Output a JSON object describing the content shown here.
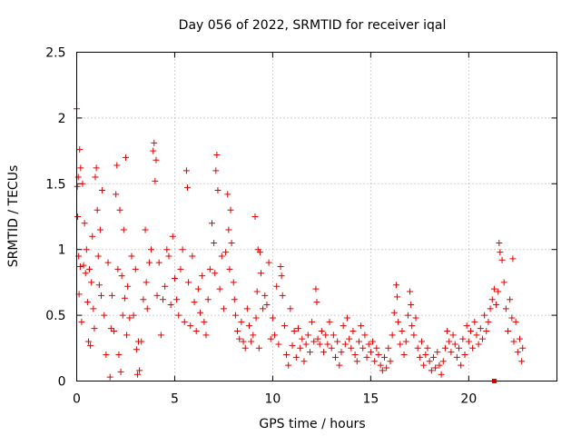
{
  "chart_data": {
    "type": "scatter",
    "title": "Day 056 of 2022, SRMTID for receiver iqal",
    "xlabel": "GPS time / hours",
    "ylabel": "SRMTID / TECUs",
    "xlim": [
      0,
      24.5
    ],
    "ylim": [
      0,
      2.5
    ],
    "xticks": [
      0,
      5,
      10,
      15,
      20
    ],
    "xtick_labels": [
      "0",
      "5",
      "10",
      "15",
      "20"
    ],
    "yticks": [
      0,
      0.5,
      1,
      1.5,
      2,
      2.5
    ],
    "ytick_labels": [
      "0",
      "0.5",
      "1",
      "1.5",
      "2",
      "2.5"
    ],
    "grid": true,
    "marker": "+",
    "color": "#e00000",
    "series": [
      {
        "name": "iqal",
        "points": [
          [
            0.0,
            2.07
          ],
          [
            0.03,
            1.48
          ],
          [
            0.05,
            1.25
          ],
          [
            0.08,
            1.55
          ],
          [
            0.1,
            0.95
          ],
          [
            0.12,
            0.66
          ],
          [
            0.15,
            1.76
          ],
          [
            0.18,
            0.87
          ],
          [
            0.2,
            1.62
          ],
          [
            0.25,
            0.45
          ],
          [
            0.3,
            1.5
          ],
          [
            0.35,
            0.88
          ],
          [
            0.4,
            1.2
          ],
          [
            0.45,
            0.82
          ],
          [
            0.5,
            1.0
          ],
          [
            0.55,
            0.6
          ],
          [
            0.6,
            0.3
          ],
          [
            0.65,
            0.85
          ],
          [
            0.7,
            0.27
          ],
          [
            0.75,
            0.75
          ],
          [
            0.8,
            1.1
          ],
          [
            0.85,
            0.55
          ],
          [
            0.9,
            0.4
          ],
          [
            0.95,
            1.55
          ],
          [
            1.0,
            1.62
          ],
          [
            1.05,
            1.3
          ],
          [
            1.1,
            0.95
          ],
          [
            1.15,
            0.73
          ],
          [
            1.2,
            1.15
          ],
          [
            1.25,
            0.65
          ],
          [
            1.3,
            1.45
          ],
          [
            1.4,
            0.5
          ],
          [
            1.5,
            0.2
          ],
          [
            1.6,
            0.9
          ],
          [
            1.7,
            0.03
          ],
          [
            1.75,
            0.4
          ],
          [
            1.8,
            0.65
          ],
          [
            1.9,
            0.38
          ],
          [
            2.0,
            1.42
          ],
          [
            2.05,
            1.64
          ],
          [
            2.1,
            0.85
          ],
          [
            2.15,
            0.2
          ],
          [
            2.2,
            1.3
          ],
          [
            2.25,
            0.07
          ],
          [
            2.3,
            0.8
          ],
          [
            2.35,
            0.5
          ],
          [
            2.4,
            1.15
          ],
          [
            2.45,
            0.63
          ],
          [
            2.5,
            1.7
          ],
          [
            2.55,
            0.35
          ],
          [
            2.6,
            0.72
          ],
          [
            2.7,
            0.48
          ],
          [
            2.8,
            0.95
          ],
          [
            2.9,
            0.5
          ],
          [
            3.0,
            0.85
          ],
          [
            3.05,
            0.24
          ],
          [
            3.1,
            0.05
          ],
          [
            3.15,
            0.3
          ],
          [
            3.2,
            0.08
          ],
          [
            3.3,
            0.3
          ],
          [
            3.4,
            0.62
          ],
          [
            3.5,
            1.15
          ],
          [
            3.55,
            0.75
          ],
          [
            3.6,
            0.55
          ],
          [
            3.7,
            0.9
          ],
          [
            3.8,
            1.0
          ],
          [
            3.9,
            1.75
          ],
          [
            3.95,
            1.81
          ],
          [
            4.0,
            1.52
          ],
          [
            4.05,
            1.68
          ],
          [
            4.1,
            0.65
          ],
          [
            4.2,
            0.9
          ],
          [
            4.3,
            0.35
          ],
          [
            4.4,
            0.62
          ],
          [
            4.5,
            0.72
          ],
          [
            4.6,
            1.0
          ],
          [
            4.7,
            0.95
          ],
          [
            4.8,
            0.58
          ],
          [
            4.9,
            1.1
          ],
          [
            5.0,
            0.78
          ],
          [
            5.1,
            0.62
          ],
          [
            5.2,
            0.5
          ],
          [
            5.3,
            0.85
          ],
          [
            5.4,
            1.0
          ],
          [
            5.5,
            0.45
          ],
          [
            5.6,
            1.6
          ],
          [
            5.65,
            1.47
          ],
          [
            5.7,
            0.75
          ],
          [
            5.8,
            0.42
          ],
          [
            5.9,
            0.95
          ],
          [
            6.0,
            0.6
          ],
          [
            6.1,
            0.38
          ],
          [
            6.2,
            0.7
          ],
          [
            6.3,
            0.52
          ],
          [
            6.4,
            0.8
          ],
          [
            6.5,
            0.45
          ],
          [
            6.6,
            0.35
          ],
          [
            6.7,
            0.62
          ],
          [
            6.8,
            0.85
          ],
          [
            6.9,
            1.2
          ],
          [
            7.0,
            1.05
          ],
          [
            7.05,
            0.82
          ],
          [
            7.1,
            1.6
          ],
          [
            7.15,
            1.72
          ],
          [
            7.2,
            1.45
          ],
          [
            7.3,
            0.7
          ],
          [
            7.4,
            0.95
          ],
          [
            7.5,
            0.55
          ],
          [
            7.6,
            0.98
          ],
          [
            7.7,
            1.42
          ],
          [
            7.75,
            1.15
          ],
          [
            7.8,
            0.85
          ],
          [
            7.85,
            1.3
          ],
          [
            7.9,
            1.05
          ],
          [
            8.0,
            0.75
          ],
          [
            8.05,
            0.62
          ],
          [
            8.1,
            0.5
          ],
          [
            8.2,
            0.38
          ],
          [
            8.3,
            0.32
          ],
          [
            8.4,
            0.45
          ],
          [
            8.5,
            0.3
          ],
          [
            8.6,
            0.25
          ],
          [
            8.7,
            0.55
          ],
          [
            8.8,
            0.42
          ],
          [
            8.9,
            0.3
          ],
          [
            9.0,
            0.35
          ],
          [
            9.1,
            1.25
          ],
          [
            9.15,
            0.48
          ],
          [
            9.2,
            0.68
          ],
          [
            9.25,
            1.0
          ],
          [
            9.3,
            0.25
          ],
          [
            9.35,
            0.98
          ],
          [
            9.4,
            0.82
          ],
          [
            9.5,
            0.55
          ],
          [
            9.6,
            0.65
          ],
          [
            9.7,
            0.58
          ],
          [
            9.8,
            0.9
          ],
          [
            9.9,
            0.32
          ],
          [
            10.0,
            0.48
          ],
          [
            10.1,
            0.35
          ],
          [
            10.2,
            0.72
          ],
          [
            10.3,
            0.28
          ],
          [
            10.4,
            0.87
          ],
          [
            10.45,
            0.8
          ],
          [
            10.5,
            0.65
          ],
          [
            10.6,
            0.42
          ],
          [
            10.7,
            0.2
          ],
          [
            10.8,
            0.12
          ],
          [
            10.9,
            0.55
          ],
          [
            11.0,
            0.27
          ],
          [
            11.1,
            0.38
          ],
          [
            11.2,
            0.18
          ],
          [
            11.3,
            0.4
          ],
          [
            11.4,
            0.25
          ],
          [
            11.5,
            0.32
          ],
          [
            11.6,
            0.15
          ],
          [
            11.7,
            0.28
          ],
          [
            11.8,
            0.35
          ],
          [
            11.9,
            0.22
          ],
          [
            12.0,
            0.45
          ],
          [
            12.1,
            0.3
          ],
          [
            12.2,
            0.7
          ],
          [
            12.25,
            0.6
          ],
          [
            12.3,
            0.32
          ],
          [
            12.4,
            0.28
          ],
          [
            12.5,
            0.38
          ],
          [
            12.6,
            0.22
          ],
          [
            12.7,
            0.35
          ],
          [
            12.8,
            0.28
          ],
          [
            12.9,
            0.45
          ],
          [
            13.0,
            0.25
          ],
          [
            13.1,
            0.35
          ],
          [
            13.2,
            0.18
          ],
          [
            13.3,
            0.3
          ],
          [
            13.4,
            0.12
          ],
          [
            13.5,
            0.22
          ],
          [
            13.6,
            0.42
          ],
          [
            13.7,
            0.28
          ],
          [
            13.8,
            0.48
          ],
          [
            13.9,
            0.32
          ],
          [
            14.0,
            0.25
          ],
          [
            14.1,
            0.38
          ],
          [
            14.2,
            0.2
          ],
          [
            14.3,
            0.15
          ],
          [
            14.4,
            0.3
          ],
          [
            14.5,
            0.42
          ],
          [
            14.6,
            0.25
          ],
          [
            14.7,
            0.35
          ],
          [
            14.8,
            0.18
          ],
          [
            14.9,
            0.28
          ],
          [
            15.0,
            0.22
          ],
          [
            15.1,
            0.3
          ],
          [
            15.2,
            0.15
          ],
          [
            15.3,
            0.25
          ],
          [
            15.4,
            0.2
          ],
          [
            15.5,
            0.12
          ],
          [
            15.6,
            0.08
          ],
          [
            15.7,
            0.18
          ],
          [
            15.8,
            0.1
          ],
          [
            15.9,
            0.25
          ],
          [
            16.0,
            0.15
          ],
          [
            16.1,
            0.35
          ],
          [
            16.2,
            0.52
          ],
          [
            16.3,
            0.73
          ],
          [
            16.35,
            0.64
          ],
          [
            16.4,
            0.45
          ],
          [
            16.5,
            0.28
          ],
          [
            16.6,
            0.38
          ],
          [
            16.7,
            0.2
          ],
          [
            16.8,
            0.3
          ],
          [
            16.9,
            0.5
          ],
          [
            17.0,
            0.68
          ],
          [
            17.05,
            0.58
          ],
          [
            17.1,
            0.42
          ],
          [
            17.2,
            0.35
          ],
          [
            17.3,
            0.48
          ],
          [
            17.4,
            0.25
          ],
          [
            17.5,
            0.18
          ],
          [
            17.6,
            0.3
          ],
          [
            17.7,
            0.12
          ],
          [
            17.8,
            0.2
          ],
          [
            17.9,
            0.25
          ],
          [
            18.0,
            0.15
          ],
          [
            18.1,
            0.08
          ],
          [
            18.2,
            0.18
          ],
          [
            18.3,
            0.1
          ],
          [
            18.4,
            0.22
          ],
          [
            18.5,
            0.12
          ],
          [
            18.6,
            0.05
          ],
          [
            18.7,
            0.15
          ],
          [
            18.8,
            0.25
          ],
          [
            18.9,
            0.38
          ],
          [
            19.0,
            0.3
          ],
          [
            19.1,
            0.22
          ],
          [
            19.2,
            0.35
          ],
          [
            19.3,
            0.28
          ],
          [
            19.4,
            0.18
          ],
          [
            19.5,
            0.25
          ],
          [
            19.6,
            0.12
          ],
          [
            19.7,
            0.32
          ],
          [
            19.8,
            0.2
          ],
          [
            19.9,
            0.42
          ],
          [
            20.0,
            0.3
          ],
          [
            20.1,
            0.38
          ],
          [
            20.2,
            0.25
          ],
          [
            20.3,
            0.45
          ],
          [
            20.4,
            0.35
          ],
          [
            20.5,
            0.28
          ],
          [
            20.6,
            0.4
          ],
          [
            20.7,
            0.32
          ],
          [
            20.8,
            0.5
          ],
          [
            20.9,
            0.38
          ],
          [
            21.0,
            0.45
          ],
          [
            21.1,
            0.55
          ],
          [
            21.2,
            0.62
          ],
          [
            21.3,
            0.7
          ],
          [
            21.4,
            0.58
          ],
          [
            21.5,
            0.68
          ],
          [
            21.55,
            1.05
          ],
          [
            21.6,
            0.98
          ],
          [
            21.7,
            0.92
          ],
          [
            21.8,
            0.75
          ],
          [
            21.9,
            0.55
          ],
          [
            22.0,
            0.38
          ],
          [
            22.1,
            0.62
          ],
          [
            22.2,
            0.48
          ],
          [
            22.25,
            0.93
          ],
          [
            22.3,
            0.3
          ],
          [
            22.4,
            0.45
          ],
          [
            22.5,
            0.22
          ],
          [
            22.6,
            0.32
          ],
          [
            22.7,
            0.15
          ],
          [
            22.75,
            0.25
          ]
        ]
      }
    ],
    "annotations": [
      {
        "type": "marker-square",
        "x": 21.3,
        "y": 0.0,
        "color": "#e00000"
      }
    ]
  }
}
